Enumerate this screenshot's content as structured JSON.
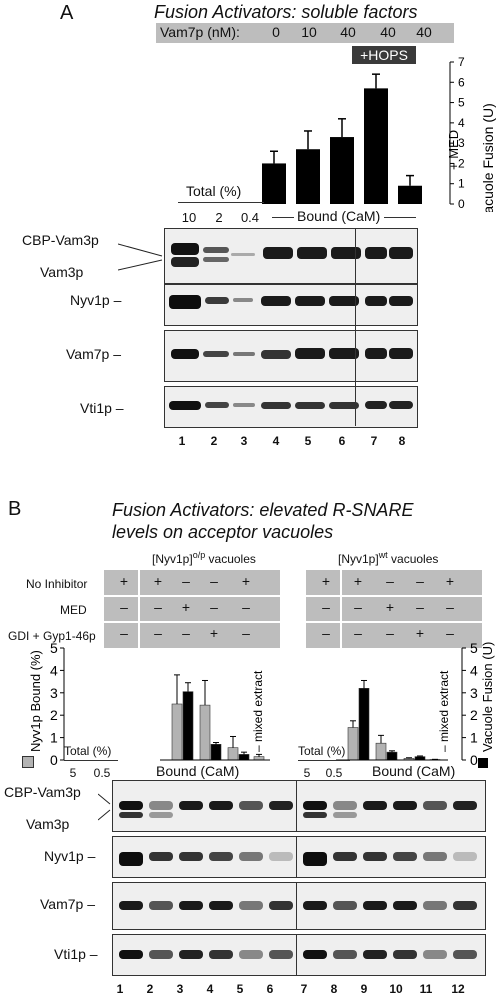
{
  "panelA": {
    "letter": "A",
    "title": "Fusion Activators:  soluble factors",
    "vam7_row_label": "Vam7p (nM):",
    "vam7_values": [
      "0",
      "10",
      "40",
      "40",
      "40"
    ],
    "hops_label": "+HOPS",
    "med_label": "+ MED",
    "total_label": "Total (%)",
    "total_values": [
      "10",
      "2",
      "0.4"
    ],
    "bound_label": "Bound (CaM)",
    "blot_labels": [
      "CBP-Vam3p",
      "Vam3p",
      "Nyv1p –",
      "Vam7p –",
      "Vti1p –"
    ],
    "lanes": [
      "1",
      "2",
      "3",
      "4",
      "5",
      "6",
      "7",
      "8"
    ]
  },
  "panelB": {
    "letter": "B",
    "title_line1": "Fusion Activators:  elevated R-SNARE",
    "title_line2": "levels on acceptor vacuoles",
    "left_group": "[Nyv1p]",
    "left_sup": "o/p",
    "left_suffix": " vacuoles",
    "right_group": "[Nyv1p]",
    "right_sup": "wt",
    "right_suffix": " vacuoles",
    "row_labels": [
      "No Inhibitor",
      "MED",
      "GDI + Gyp1-46p"
    ],
    "left_table": [
      [
        "+",
        "+",
        "–",
        "–",
        "+"
      ],
      [
        "–",
        "–",
        "+",
        "–",
        "–"
      ],
      [
        "–",
        "–",
        "–",
        "+",
        "–"
      ]
    ],
    "right_table": [
      [
        "+",
        "+",
        "–",
        "–",
        "+"
      ],
      [
        "–",
        "–",
        "+",
        "–",
        "–"
      ],
      [
        "–",
        "–",
        "–",
        "+",
        "–"
      ]
    ],
    "mixed_extract": "– mixed extract",
    "total_label": "Total (%)",
    "total_values": [
      "5",
      "0.5"
    ],
    "bound_label": "Bound (CaM)",
    "blot_labels": [
      "CBP-Vam3p",
      "Vam3p",
      "Nyv1p –",
      "Vam7p –",
      "Vti1p –"
    ],
    "lanes": [
      "1",
      "2",
      "3",
      "4",
      "5",
      "6",
      "7",
      "8",
      "9",
      "10",
      "11",
      "12"
    ]
  },
  "chart_data": [
    {
      "type": "bar",
      "panel": "A",
      "categories": [
        "0 nM",
        "10 nM",
        "40 nM",
        "40 nM +HOPS",
        "40 nM +MED"
      ],
      "values": [
        2.0,
        2.7,
        3.3,
        5.7,
        0.9
      ],
      "errors": [
        0.6,
        0.9,
        0.9,
        0.7,
        0.5
      ],
      "ylabel": "Vacuole Fusion (U)",
      "ylim": [
        0,
        7
      ],
      "yticks": [
        0,
        1,
        2,
        3,
        4,
        5,
        6,
        7
      ],
      "color": "#000000"
    },
    {
      "type": "bar",
      "panel": "B",
      "categories": [
        "o/p No Inhibitor",
        "o/p MED",
        "o/p GDI + Gyp1-46p",
        "o/p mixed extract",
        "wt No Inhibitor",
        "wt MED",
        "wt GDI + Gyp1-46p",
        "wt mixed extract"
      ],
      "ylabel_left": "Nyv1p Bound (%)",
      "ylabel_right": "Vacuole Fusion (U)",
      "ylim": [
        0,
        5
      ],
      "yticks": [
        0,
        1,
        2,
        3,
        4,
        5
      ],
      "series": [
        {
          "name": "Nyv1p Bound (%)",
          "color": "#b3b3b3",
          "values": [
            2.5,
            2.45,
            0.55,
            0.15,
            1.45,
            0.75,
            0.07,
            0.02
          ],
          "errors": [
            1.3,
            1.1,
            0.5,
            0.1,
            0.3,
            0.35,
            0.03,
            0.01
          ]
        },
        {
          "name": "Vacuole Fusion (U)",
          "color": "#000000",
          "values": [
            3.05,
            0.7,
            0.25,
            null,
            3.2,
            0.35,
            0.15,
            null
          ],
          "errors": [
            0.4,
            0.08,
            0.1,
            null,
            0.35,
            0.06,
            0.03,
            null
          ]
        }
      ]
    }
  ]
}
